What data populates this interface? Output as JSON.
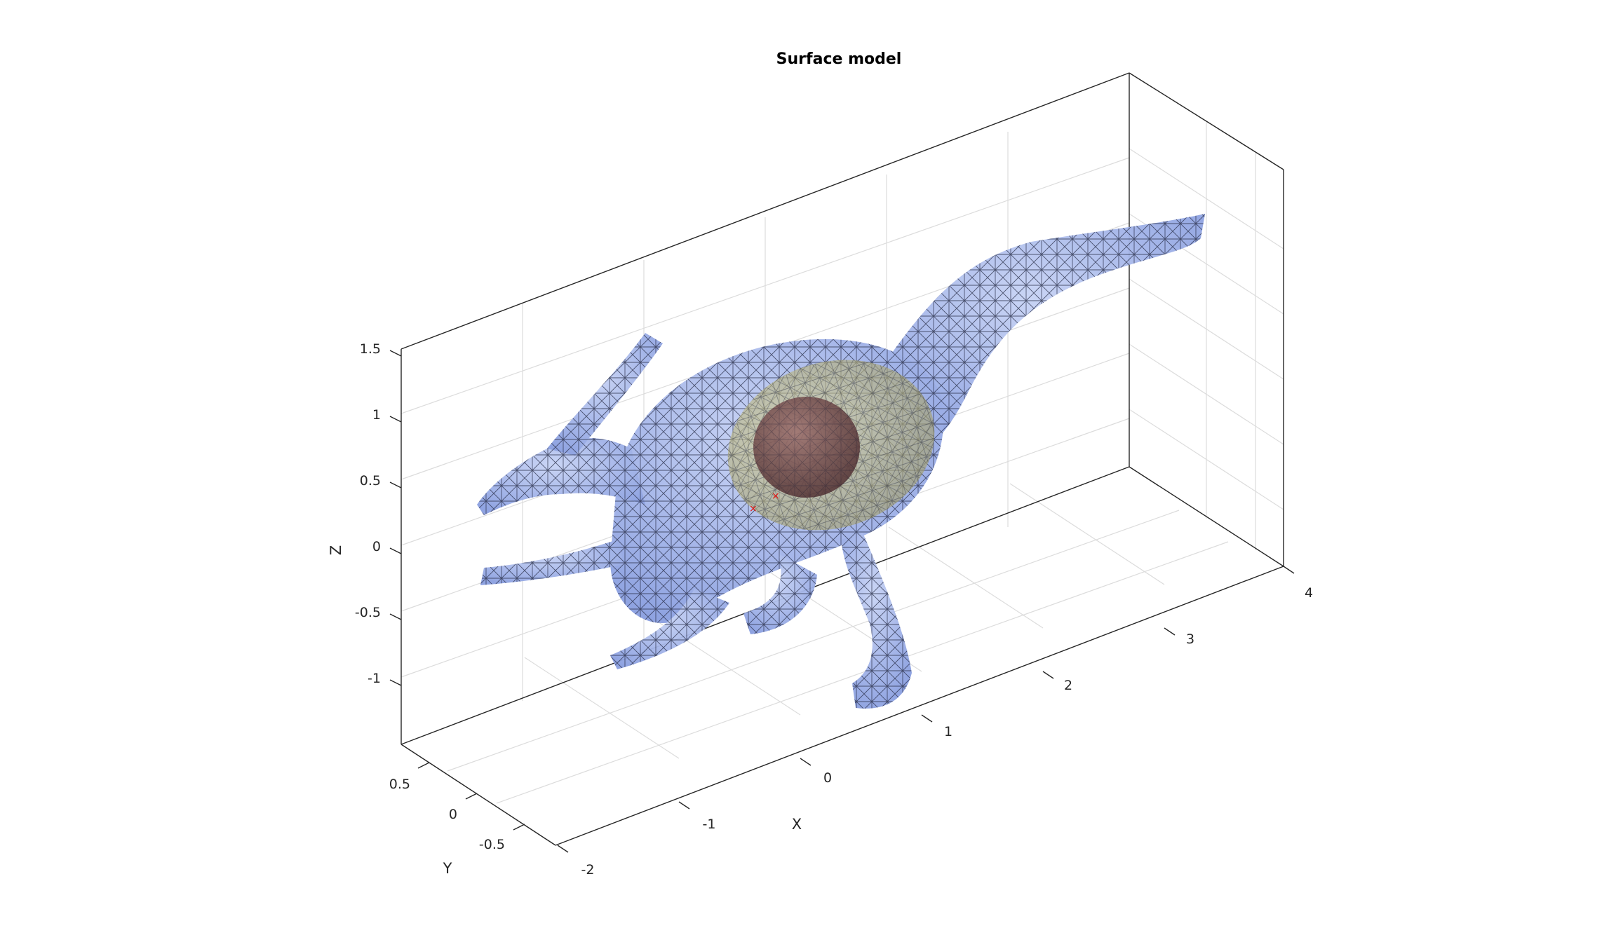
{
  "figure": {
    "title": "Surface model",
    "mesh_color": "#9aaee8",
    "edge_color": "#1a1f3a",
    "ellipsoid_color": "#c8c48a",
    "sphere_color": "#6e4040",
    "marker_color": "#e01010"
  },
  "axes": {
    "x": {
      "label": "X",
      "ticks": [
        "-2",
        "-1",
        "0",
        "1",
        "2",
        "3",
        "4"
      ]
    },
    "y": {
      "label": "Y",
      "ticks": [
        "0.5",
        "0",
        "-0.5"
      ]
    },
    "z": {
      "label": "Z",
      "ticks": [
        "1.5",
        "1",
        "0.5",
        "0",
        "-0.5",
        "-1"
      ]
    }
  }
}
